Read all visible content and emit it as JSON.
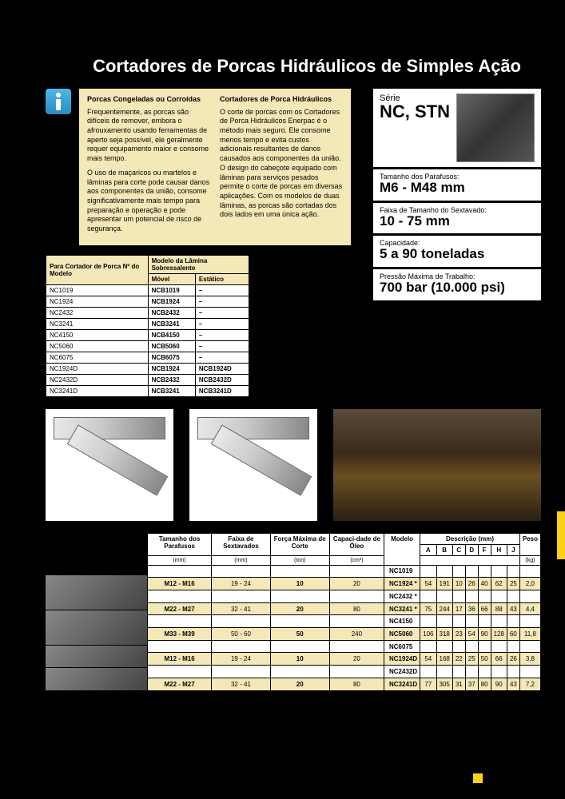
{
  "title": "Cortadores de Porcas Hidráulicos de Simples Ação",
  "info": {
    "col1_heading": "Porcas Congeladas ou Corroídas",
    "col1_p1": "Frequentemente, as porcas são difíceis de remover, embora o afrouxamento usando ferramentas de aperto seja possível, ele geralmente requer equipamento maior e consome mais tempo.",
    "col1_p2": "O uso de maçaricos ou martelos e lâminas para corte pode causar danos aos componentes da união, consome significativamente mais tempo para preparação e operação e pode apresentar um potencial de risco de segurança.",
    "col2_heading": "Cortadores de Porca Hidráulicos",
    "col2_p1": "O corte de porcas com os Cortadores de Porca Hidráulicos Enerpac é o método mais seguro. Ele consome menos tempo e evita custos adicionais resultantes de danos causados aos componentes da união. O design do cabeçote equipado com lâminas para serviços pesados permite o corte de porcas em diversas aplicações. Com os modelos de duas lâminas, as porcas são cortadas dos dois lados em uma única ação."
  },
  "series": {
    "label": "Série",
    "value": "NC, STN"
  },
  "specs": [
    {
      "label": "Tamanho dos Parafusos:",
      "value": "M6 - M48 mm"
    },
    {
      "label": "Faixa de Tamanho do Sextavado:",
      "value": "10 - 75 mm"
    },
    {
      "label": "Capacidade:",
      "value": "5 a 90 toneladas"
    },
    {
      "label": "Pressão Máxima de Trabalho:",
      "value": "700 bar (10.000 psi)"
    }
  ],
  "blade_table": {
    "h1": "Para Cortador de Porca Nº do Modelo",
    "h2": "Modelo da Lâmina Sobressalente",
    "h2a": "Móvel",
    "h2b": "Estático",
    "rows": [
      [
        "NC1019",
        "NCB1019",
        "–"
      ],
      [
        "NC1924",
        "NCB1924",
        "–"
      ],
      [
        "NC2432",
        "NCB2432",
        "–"
      ],
      [
        "NC3241",
        "NCB3241",
        "–"
      ],
      [
        "NC4150",
        "NCB4150",
        "–"
      ],
      [
        "NC5060",
        "NCB5060",
        "–"
      ],
      [
        "NC6075",
        "NCB6075",
        "–"
      ],
      [
        "NC1924D",
        "NCB1924",
        "NCB1924D"
      ],
      [
        "NC2432D",
        "NCB2432",
        "NCB2432D"
      ],
      [
        "NC3241D",
        "NCB3241",
        "NCB3241D"
      ]
    ]
  },
  "main_table": {
    "headers": {
      "bolt": "Tamanho dos Parafusos",
      "hex": "Faixa de Sextavados",
      "force": "Força Máxima de Corte",
      "oil": "Capaci-dade de Óleo",
      "model": "Modelo",
      "desc": "Descrição (mm)",
      "weight": "Peso",
      "units_bolt": "(mm)",
      "units_hex": "(mm)",
      "units_force": "(ton)",
      "units_oil": "(cm³)",
      "units_weight": "(kg)",
      "A": "A",
      "B": "B",
      "C": "C",
      "D": "D",
      "F": "F",
      "H": "H",
      "J": "J"
    },
    "rows": [
      {
        "hl": false,
        "bolt": "",
        "hex": "",
        "force": "",
        "oil": "",
        "model": "NC1019",
        "A": "",
        "B": "",
        "C": "",
        "D": "",
        "F": "",
        "H": "",
        "J": "",
        "kg": ""
      },
      {
        "hl": true,
        "bolt": "M12 - M16",
        "hex": "19 - 24",
        "force": "10",
        "oil": "20",
        "model": "NC1924 *",
        "A": "54",
        "B": "191",
        "C": "10",
        "D": "26",
        "F": "40",
        "H": "62",
        "J": "25",
        "kg": "2,0"
      },
      {
        "hl": false,
        "bolt": "",
        "hex": "",
        "force": "",
        "oil": "",
        "model": "NC2432 *",
        "A": "",
        "B": "",
        "C": "",
        "D": "",
        "F": "",
        "H": "",
        "J": "",
        "kg": ""
      },
      {
        "hl": true,
        "bolt": "M22 - M27",
        "hex": "32 - 41",
        "force": "20",
        "oil": "80",
        "model": "NC3241 *",
        "A": "75",
        "B": "244",
        "C": "17",
        "D": "36",
        "F": "66",
        "H": "88",
        "J": "43",
        "kg": "4,4"
      },
      {
        "hl": false,
        "bolt": "",
        "hex": "",
        "force": "",
        "oil": "",
        "model": "NC4150",
        "A": "",
        "B": "",
        "C": "",
        "D": "",
        "F": "",
        "H": "",
        "J": "",
        "kg": ""
      },
      {
        "hl": true,
        "bolt": "M33 - M39",
        "hex": "50 - 60",
        "force": "50",
        "oil": "240",
        "model": "NC5060",
        "A": "106",
        "B": "318",
        "C": "23",
        "D": "54",
        "F": "90",
        "H": "128",
        "J": "60",
        "kg": "11,8"
      },
      {
        "hl": false,
        "bolt": "",
        "hex": "",
        "force": "",
        "oil": "",
        "model": "NC6075",
        "A": "",
        "B": "",
        "C": "",
        "D": "",
        "F": "",
        "H": "",
        "J": "",
        "kg": ""
      },
      {
        "hl": true,
        "bolt": "M12 - M16",
        "hex": "19 - 24",
        "force": "10",
        "oil": "20",
        "model": "NC1924D",
        "A": "54",
        "B": "168",
        "C": "22",
        "D": "25",
        "F": "50",
        "H": "66",
        "J": "26",
        "kg": "3,8"
      },
      {
        "hl": false,
        "bolt": "",
        "hex": "",
        "force": "",
        "oil": "",
        "model": "NC2432D",
        "A": "",
        "B": "",
        "C": "",
        "D": "",
        "F": "",
        "H": "",
        "J": "",
        "kg": ""
      },
      {
        "hl": true,
        "bolt": "M22 - M27",
        "hex": "32 - 41",
        "force": "20",
        "oil": "80",
        "model": "NC3241D",
        "A": "77",
        "B": "305",
        "C": "31",
        "D": "37",
        "F": "80",
        "H": "90",
        "J": "43",
        "kg": "7,2"
      }
    ]
  }
}
